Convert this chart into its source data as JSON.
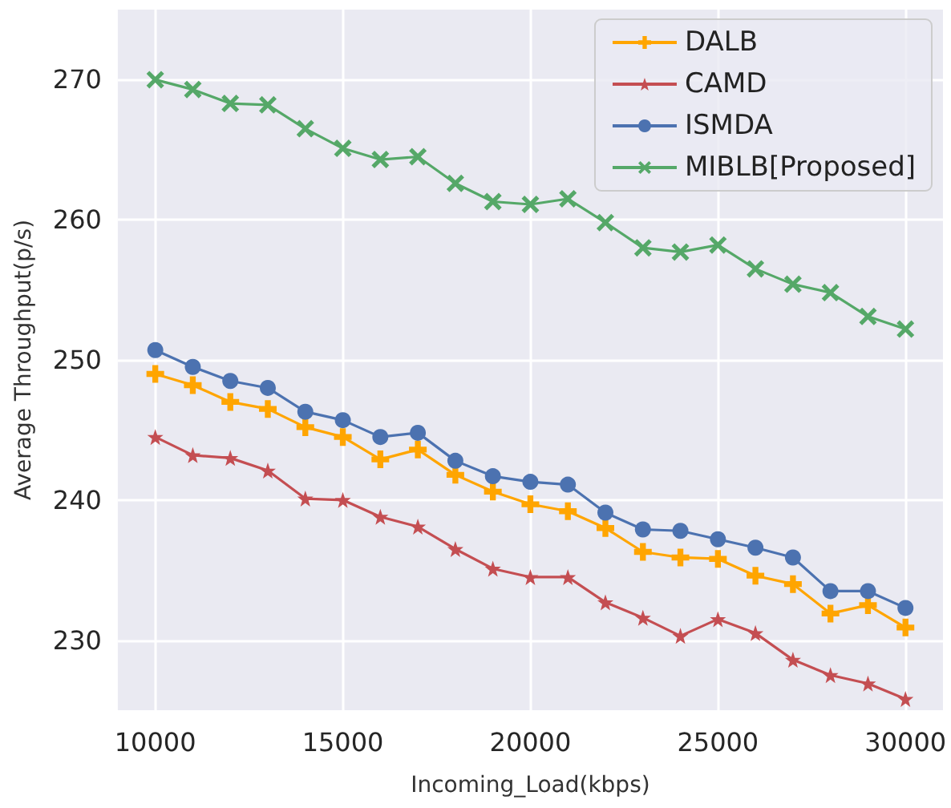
{
  "chart_data": {
    "type": "line",
    "xlabel": "Incoming_Load(kbps)",
    "ylabel": "Average Throughput(p/s)",
    "x": [
      10000,
      11000,
      12000,
      13000,
      14000,
      15000,
      16000,
      17000,
      18000,
      19000,
      20000,
      21000,
      22000,
      23000,
      24000,
      25000,
      26000,
      27000,
      28000,
      29000,
      30000
    ],
    "series": [
      {
        "name": "DALB",
        "color": "#ffa500",
        "marker": "plus",
        "values": [
          249,
          248.2,
          247,
          246.5,
          245.2,
          244.5,
          242.9,
          243.6,
          241.8,
          240.6,
          239.7,
          239.2,
          238,
          236.3,
          235.9,
          235.8,
          234.6,
          234,
          231.9,
          232.5,
          230.9
        ]
      },
      {
        "name": "CAMD",
        "color": "#c44e52",
        "marker": "star",
        "values": [
          244.5,
          243.2,
          243,
          242.1,
          240.1,
          240,
          238.8,
          238.1,
          236.5,
          235.1,
          234.5,
          234.5,
          232.7,
          231.6,
          230.3,
          231.5,
          230.5,
          228.6,
          227.5,
          226.9,
          225.8
        ]
      },
      {
        "name": "ISMDA",
        "color": "#4c72b0",
        "marker": "circle",
        "values": [
          250.7,
          249.5,
          248.5,
          248,
          246.3,
          245.7,
          244.5,
          244.8,
          242.8,
          241.7,
          241.3,
          241.1,
          239.1,
          237.9,
          237.8,
          237.2,
          236.6,
          235.9,
          233.5,
          233.5,
          232.3
        ]
      },
      {
        "name": "MIBLB[Proposed]",
        "color": "#55a868",
        "marker": "cross",
        "values": [
          270,
          269.3,
          268.3,
          268.2,
          266.5,
          265.1,
          264.3,
          264.5,
          262.6,
          261.3,
          261.1,
          261.5,
          259.8,
          258,
          257.7,
          258.2,
          256.5,
          255.4,
          254.8,
          253.1,
          252.2
        ]
      }
    ],
    "xlim": [
      9000,
      31000
    ],
    "xticks": [
      10000,
      15000,
      20000,
      25000,
      30000
    ],
    "ylim": [
      225,
      275
    ],
    "yticks": [
      230,
      240,
      250,
      260,
      270
    ],
    "grid": true,
    "legend": "top right",
    "line_style": "solid"
  }
}
